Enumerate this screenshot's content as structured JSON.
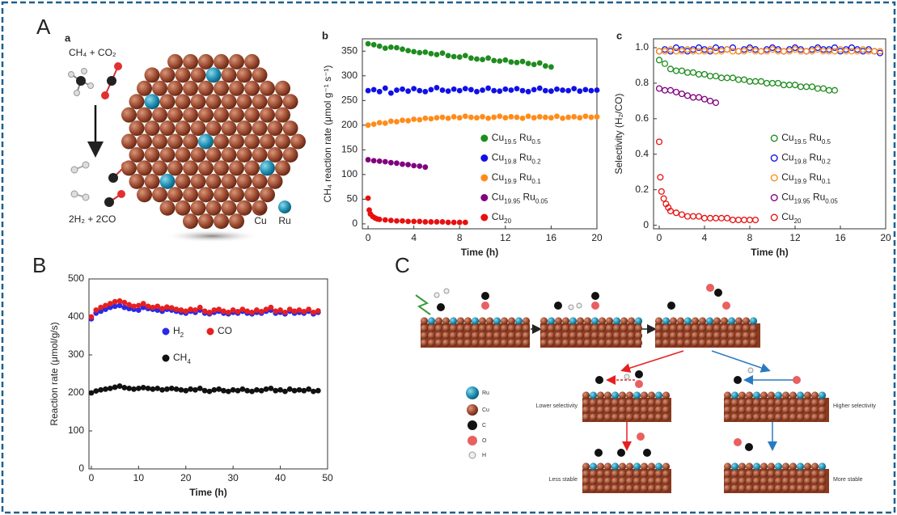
{
  "labels": {
    "panel_A": "A",
    "panel_a": "a",
    "panel_b": "b",
    "panel_c": "c",
    "panel_B": "B",
    "panel_C": "C"
  },
  "scheme_a": {
    "reactants": "CH₄ + CO₂",
    "products": "2H₂ + 2CO",
    "legend": [
      "Cu",
      "Ru"
    ]
  },
  "scheme_C": {
    "legend": [
      "Ru",
      "Cu",
      "C",
      "O",
      "H"
    ],
    "labels": [
      "Lower selectivity",
      "Higher selectivity",
      "Less stable",
      "More stable"
    ]
  },
  "chart_data": [
    {
      "type": "scatter",
      "marker": "filled",
      "xlabel": "Time (h)",
      "ylabel": "CH₄ reaction rate (μmol g⁻¹ s⁻¹)",
      "xlim": [
        -0.5,
        20
      ],
      "xticks": [
        0,
        4,
        8,
        12,
        16,
        20
      ],
      "ylim": [
        -10,
        375
      ],
      "yticks": [
        0,
        50,
        100,
        150,
        200,
        250,
        300,
        350
      ],
      "legend": "lower right",
      "series": [
        {
          "name": "Cu19.5 Ru0.5",
          "color": "#1e8c1e",
          "x": [
            0,
            0.5,
            1,
            1.5,
            2,
            2.5,
            3,
            3.5,
            4,
            4.5,
            5,
            5.5,
            6,
            6.5,
            7,
            7.5,
            8,
            8.5,
            9,
            9.5,
            10,
            10.5,
            11,
            11.5,
            12,
            12.5,
            13,
            13.5,
            14,
            14.5,
            15,
            15.5,
            16
          ],
          "values": [
            365,
            363,
            360,
            356,
            358,
            357,
            354,
            351,
            349,
            347,
            348,
            345,
            343,
            346,
            341,
            339,
            338,
            341,
            336,
            334,
            333,
            336,
            331,
            330,
            332,
            328,
            327,
            329,
            325,
            323,
            326,
            320,
            318
          ]
        },
        {
          "name": "Cu19.8 Ru0.2",
          "color": "#1010e6",
          "x": [
            0,
            0.5,
            1,
            1.5,
            2,
            2.5,
            3,
            3.5,
            4,
            4.5,
            5,
            5.5,
            6,
            6.5,
            7,
            7.5,
            8,
            8.5,
            9,
            9.5,
            10,
            10.5,
            11,
            11.5,
            12,
            12.5,
            13,
            13.5,
            14,
            14.5,
            15,
            15.5,
            16,
            16.5,
            17,
            17.5,
            18,
            18.5,
            19,
            19.5,
            20
          ],
          "values": [
            270,
            272,
            268,
            275,
            265,
            271,
            273,
            269,
            274,
            270,
            268,
            272,
            276,
            271,
            269,
            273,
            270,
            274,
            272,
            268,
            271,
            275,
            270,
            269,
            273,
            271,
            274,
            270,
            268,
            272,
            275,
            270,
            269,
            273,
            271,
            270,
            274,
            269,
            272,
            270,
            271
          ]
        },
        {
          "name": "Cu19.9 Ru0.1",
          "color": "#ff8c1a",
          "x": [
            0,
            0.5,
            1,
            1.5,
            2,
            2.5,
            3,
            3.5,
            4,
            4.5,
            5,
            5.5,
            6,
            6.5,
            7,
            7.5,
            8,
            8.5,
            9,
            9.5,
            10,
            10.5,
            11,
            11.5,
            12,
            12.5,
            13,
            13.5,
            14,
            14.5,
            15,
            15.5,
            16,
            16.5,
            17,
            17.5,
            18,
            18.5,
            19,
            19.5,
            20
          ],
          "values": [
            200,
            202,
            205,
            204,
            208,
            207,
            210,
            209,
            212,
            211,
            214,
            213,
            215,
            216,
            214,
            217,
            215,
            218,
            216,
            215,
            217,
            214,
            216,
            218,
            215,
            217,
            216,
            214,
            218,
            215,
            217,
            216,
            215,
            218,
            214,
            216,
            217,
            215,
            218,
            216,
            217
          ]
        },
        {
          "name": "Cu19.95 Ru0.05",
          "color": "#800080",
          "x": [
            0,
            0.5,
            1,
            1.5,
            2,
            2.5,
            3,
            3.5,
            4,
            4.5,
            5
          ],
          "values": [
            130,
            128,
            127,
            126,
            124,
            123,
            121,
            120,
            118,
            117,
            115
          ]
        },
        {
          "name": "Cu20",
          "color": "#e61010",
          "x": [
            0,
            0.1,
            0.2,
            0.4,
            0.6,
            0.8,
            1,
            1.5,
            2,
            2.5,
            3,
            3.5,
            4,
            4.5,
            5,
            5.5,
            6,
            6.5,
            7,
            7.5,
            8,
            8.5
          ],
          "values": [
            52,
            28,
            20,
            15,
            12,
            10,
            9,
            8,
            7,
            6,
            6,
            5,
            5,
            5,
            4,
            4,
            4,
            4,
            3,
            3,
            3,
            3
          ]
        }
      ]
    },
    {
      "type": "scatter",
      "marker": "open",
      "xlabel": "Time (h)",
      "ylabel": "Selectivity (H₂/CO)",
      "xlim": [
        -0.5,
        20
      ],
      "xticks": [
        0,
        4,
        8,
        12,
        16,
        20
      ],
      "ylim": [
        -0.02,
        1.05
      ],
      "yticks": [
        0,
        0.2,
        0.4,
        0.6,
        0.8,
        {
          "value": 1,
          "label": "1.0"
        }
      ],
      "legend": "lower right",
      "series": [
        {
          "name": "Cu19.5 Ru0.5",
          "color": "#1e8c1e",
          "x": [
            0,
            0.5,
            1,
            1.5,
            2,
            2.5,
            3,
            3.5,
            4,
            4.5,
            5,
            5.5,
            6,
            6.5,
            7,
            7.5,
            8,
            8.5,
            9,
            9.5,
            10,
            10.5,
            11,
            11.5,
            12,
            12.5,
            13,
            13.5,
            14,
            14.5,
            15,
            15.5
          ],
          "values": [
            0.93,
            0.91,
            0.88,
            0.87,
            0.87,
            0.86,
            0.86,
            0.85,
            0.85,
            0.84,
            0.84,
            0.83,
            0.83,
            0.83,
            0.82,
            0.82,
            0.81,
            0.81,
            0.81,
            0.8,
            0.8,
            0.8,
            0.79,
            0.79,
            0.79,
            0.78,
            0.78,
            0.78,
            0.77,
            0.77,
            0.76,
            0.76
          ]
        },
        {
          "name": "Cu19.8 Ru0.2",
          "color": "#1010e6",
          "x": [
            0,
            0.5,
            1,
            1.5,
            2,
            2.5,
            3,
            3.5,
            4,
            4.5,
            5,
            5.5,
            6,
            6.5,
            7,
            7.5,
            8,
            8.5,
            9,
            9.5,
            10,
            10.5,
            11,
            11.5,
            12,
            12.5,
            13,
            13.5,
            14,
            14.5,
            15,
            15.5,
            16,
            16.5,
            17,
            17.5,
            18,
            18.5,
            19,
            19.5
          ],
          "values": [
            0.98,
            0.99,
            0.98,
            1,
            0.99,
            0.98,
            0.99,
            1,
            0.99,
            0.98,
            1,
            0.99,
            0.99,
            1,
            0.98,
            0.99,
            1,
            0.99,
            0.98,
            0.99,
            1,
            0.99,
            0.98,
            0.99,
            1,
            0.99,
            0.98,
            0.99,
            1,
            0.99,
            0.99,
            1,
            0.98,
            0.99,
            1,
            0.99,
            0.98,
            0.99,
            0.98,
            0.97
          ]
        },
        {
          "name": "Cu19.9 Ru0.1",
          "color": "#ff8c1a",
          "x": [
            0,
            0.5,
            1,
            1.5,
            2,
            2.5,
            3,
            3.5,
            4,
            4.5,
            5,
            5.5,
            6,
            6.5,
            7,
            7.5,
            8,
            8.5,
            9,
            9.5,
            10,
            10.5,
            11,
            11.5,
            12,
            12.5,
            13,
            13.5,
            14,
            14.5,
            15,
            15.5,
            16,
            16.5,
            17,
            17.5,
            18,
            18.5,
            19,
            19.5
          ],
          "values": [
            0.98,
            0.98,
            0.99,
            0.98,
            0.98,
            0.99,
            0.98,
            0.98,
            0.98,
            0.99,
            0.98,
            0.98,
            0.99,
            0.98,
            0.98,
            0.98,
            0.99,
            0.98,
            0.98,
            0.98,
            0.99,
            0.98,
            0.98,
            0.98,
            0.99,
            0.98,
            0.98,
            0.98,
            0.99,
            0.98,
            0.98,
            0.98,
            0.99,
            0.98,
            0.98,
            0.98,
            0.99,
            0.98,
            0.98,
            0.98
          ]
        },
        {
          "name": "Cu19.95 Ru0.05",
          "color": "#800080",
          "x": [
            0,
            0.5,
            1,
            1.5,
            2,
            2.5,
            3,
            3.5,
            4,
            4.5,
            5
          ],
          "values": [
            0.77,
            0.76,
            0.76,
            0.75,
            0.74,
            0.73,
            0.72,
            0.72,
            0.71,
            0.7,
            0.69
          ]
        },
        {
          "name": "Cu20",
          "color": "#e61010",
          "x": [
            0,
            0.1,
            0.2,
            0.4,
            0.6,
            0.8,
            1,
            1.5,
            2,
            2.5,
            3,
            3.5,
            4,
            4.5,
            5,
            5.5,
            6,
            6.5,
            7,
            7.5,
            8,
            8.5
          ],
          "values": [
            0.47,
            0.27,
            0.19,
            0.15,
            0.12,
            0.1,
            0.08,
            0.07,
            0.06,
            0.05,
            0.05,
            0.05,
            0.04,
            0.04,
            0.04,
            0.04,
            0.04,
            0.03,
            0.03,
            0.03,
            0.03,
            0.03
          ]
        }
      ]
    },
    {
      "type": "scatter",
      "marker": "filled",
      "xlabel": "Time (h)",
      "ylabel": "Reaction rate (μmol/g/s)",
      "xlim": [
        -0.5,
        50
      ],
      "xticks": [
        0,
        10,
        20,
        30,
        40,
        50
      ],
      "ylim": [
        0,
        500
      ],
      "yticks": [
        0,
        100,
        200,
        300,
        400,
        500
      ],
      "legend": "center left",
      "x": [
        0,
        1,
        2,
        3,
        4,
        5,
        6,
        7,
        8,
        9,
        10,
        11,
        12,
        13,
        14,
        15,
        16,
        17,
        18,
        19,
        20,
        21,
        22,
        23,
        24,
        25,
        26,
        27,
        28,
        29,
        30,
        31,
        32,
        33,
        34,
        35,
        36,
        37,
        38,
        39,
        40,
        41,
        42,
        43,
        44,
        45,
        46,
        47,
        48
      ],
      "series": [
        {
          "name": "H2",
          "color": "#2a2ae6",
          "values": [
            395,
            410,
            415,
            420,
            425,
            428,
            430,
            425,
            422,
            420,
            418,
            425,
            422,
            420,
            418,
            415,
            420,
            418,
            415,
            412,
            410,
            415,
            412,
            418,
            410,
            408,
            412,
            415,
            410,
            408,
            412,
            410,
            415,
            410,
            408,
            412,
            410,
            415,
            418,
            410,
            412,
            408,
            415,
            410,
            412,
            410,
            415,
            408,
            412
          ]
        },
        {
          "name": "CO",
          "color": "#e62020",
          "values": [
            400,
            418,
            425,
            430,
            435,
            440,
            442,
            438,
            432,
            428,
            430,
            435,
            428,
            425,
            428,
            422,
            426,
            424,
            420,
            418,
            415,
            420,
            418,
            425,
            415,
            412,
            418,
            420,
            415,
            412,
            418,
            414,
            420,
            415,
            412,
            418,
            414,
            420,
            425,
            415,
            418,
            412,
            420,
            415,
            418,
            414,
            420,
            412,
            416
          ]
        },
        {
          "name": "CH4",
          "color": "#111111",
          "values": [
            200,
            205,
            208,
            210,
            212,
            215,
            218,
            214,
            212,
            210,
            212,
            214,
            212,
            210,
            212,
            208,
            210,
            212,
            210,
            208,
            206,
            210,
            208,
            212,
            206,
            204,
            208,
            210,
            206,
            204,
            208,
            206,
            210,
            206,
            204,
            208,
            206,
            210,
            212,
            206,
            208,
            204,
            210,
            206,
            208,
            206,
            210,
            204,
            206
          ]
        }
      ]
    }
  ]
}
